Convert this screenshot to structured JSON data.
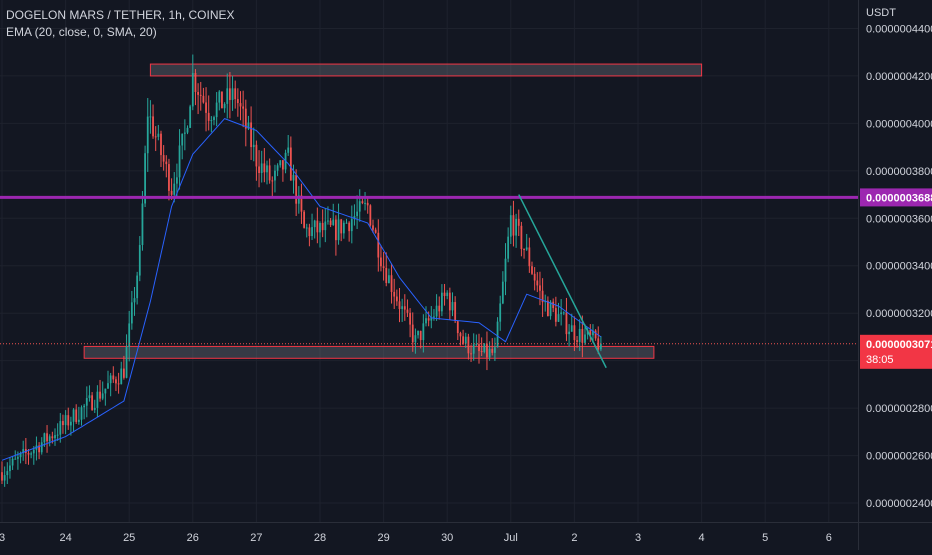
{
  "header": {
    "symbol_line": "DOGELON MARS / TETHER, 1h, COINEX",
    "indicator_line": "EMA (20, close, 0, SMA, 20)"
  },
  "price_axis": {
    "currency": "USDT",
    "ticks": [
      4.4e-07,
      4.2e-07,
      4e-07,
      3.8e-07,
      3.6e-07,
      3.4e-07,
      3.2e-07,
      3e-07,
      2.8e-07,
      2.6e-07,
      2.4e-07
    ],
    "tick_labels": [
      "0.0000004400",
      "0.0000004200",
      "0.0000004000",
      "0.0000003800",
      "0.0000003600",
      "0.0000003400",
      "0.0000003200",
      "",
      "0.0000002800",
      "0.0000002600",
      "0.0000002400"
    ],
    "horizontal_line_value": 3.688e-07,
    "horizontal_line_label": "0.0000003688",
    "last_price_value": 3.071e-07,
    "last_price_label": "0.0000003071",
    "countdown": "38:05"
  },
  "time_axis": {
    "labels": [
      "3",
      "24",
      "25",
      "26",
      "27",
      "28",
      "29",
      "30",
      "Jul",
      "2",
      "3",
      "4",
      "5",
      "6"
    ]
  },
  "colors": {
    "background": "#131722",
    "up": "#26a69a",
    "down": "#ef5350",
    "ema": "#2962ff",
    "hline": "#9c27b0",
    "zone_border": "#f23645",
    "trendline": "#26a69a",
    "text": "#d1d4dc"
  },
  "chart_data": {
    "type": "candlestick",
    "title": "DOGELON MARS / TETHER, 1h, COINEX",
    "timeframe": "1h",
    "ylim": [
      2.32e-07,
      4.52e-07
    ],
    "x_start": "2021-06-23 00:00",
    "x_end": "2021-07-06 12:00",
    "overlay": "EMA (20, close, 0, SMA, 20)",
    "price_path": [
      [
        "2021-06-23 00:00",
        2.53e-07
      ],
      [
        "2021-06-23 18:00",
        2.68e-07
      ],
      [
        "2021-06-24 12:00",
        2.85e-07
      ],
      [
        "2021-06-24 22:00",
        2.96e-07
      ],
      [
        "2021-06-25 04:00",
        3.45e-07
      ],
      [
        "2021-06-25 07:00",
        4.05e-07
      ],
      [
        "2021-06-25 16:00",
        3.73e-07
      ],
      [
        "2021-06-25 21:00",
        3.95e-07
      ],
      [
        "2021-06-26 00:00",
        4.2e-07
      ],
      [
        "2021-06-26 06:00",
        4.05e-07
      ],
      [
        "2021-06-26 16:00",
        4.12e-07
      ],
      [
        "2021-06-27 00:00",
        3.85e-07
      ],
      [
        "2021-06-27 06:00",
        3.75e-07
      ],
      [
        "2021-06-27 12:00",
        3.85e-07
      ],
      [
        "2021-06-27 18:00",
        3.55e-07
      ],
      [
        "2021-06-28 06:00",
        3.55e-07
      ],
      [
        "2021-06-28 18:00",
        3.65e-07
      ],
      [
        "2021-06-29 00:00",
        3.4e-07
      ],
      [
        "2021-06-29 12:00",
        3.08e-07
      ],
      [
        "2021-06-30 00:00",
        3.28e-07
      ],
      [
        "2021-06-30 06:00",
        3.08e-07
      ],
      [
        "2021-06-30 12:00",
        3.03e-07
      ],
      [
        "2021-06-30 18:00",
        3.03e-07
      ],
      [
        "2021-07-01 00:00",
        3.6e-07
      ],
      [
        "2021-07-01 06:00",
        3.45e-07
      ],
      [
        "2021-07-01 12:00",
        3.25e-07
      ],
      [
        "2021-07-02 00:00",
        3.12e-07
      ],
      [
        "2021-07-02 10:00",
        3.07e-07
      ]
    ],
    "ema_path": [
      [
        "2021-06-23 00:00",
        2.58e-07
      ],
      [
        "2021-06-24 00:00",
        2.68e-07
      ],
      [
        "2021-06-24 22:00",
        2.83e-07
      ],
      [
        "2021-06-25 08:00",
        3.25e-07
      ],
      [
        "2021-06-25 16:00",
        3.65e-07
      ],
      [
        "2021-06-26 00:00",
        3.87e-07
      ],
      [
        "2021-06-26 12:00",
        4.02e-07
      ],
      [
        "2021-06-27 00:00",
        3.97e-07
      ],
      [
        "2021-06-27 12:00",
        3.83e-07
      ],
      [
        "2021-06-28 00:00",
        3.65e-07
      ],
      [
        "2021-06-28 18:00",
        3.58e-07
      ],
      [
        "2021-06-29 06:00",
        3.35e-07
      ],
      [
        "2021-06-29 18:00",
        3.18e-07
      ],
      [
        "2021-06-30 12:00",
        3.16e-07
      ],
      [
        "2021-06-30 22:00",
        3.08e-07
      ],
      [
        "2021-07-01 06:00",
        3.28e-07
      ],
      [
        "2021-07-01 18:00",
        3.23e-07
      ],
      [
        "2021-07-02 10:00",
        3.1e-07
      ]
    ],
    "zones": [
      {
        "start": "2021-06-25 08:00",
        "end": "2021-07-04 00:00",
        "top": 4.25e-07,
        "bottom": 4.2e-07
      },
      {
        "start": "2021-06-24 07:00",
        "end": "2021-07-03 06:00",
        "top": 3.06e-07,
        "bottom": 3.01e-07
      }
    ],
    "hlines": [
      3.688e-07
    ],
    "trendline": {
      "start": [
        "2021-07-01 03:00",
        3.7e-07
      ],
      "end": [
        "2021-07-02 12:00",
        2.97e-07
      ]
    }
  }
}
